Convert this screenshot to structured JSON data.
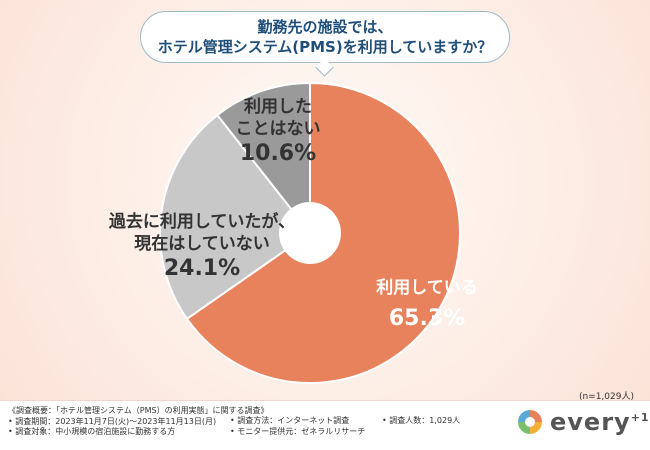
{
  "question": {
    "line1": "勤務先の施設では、",
    "line2": "ホテル管理システム(PMS)を利用していますか？"
  },
  "chart_data": {
    "type": "pie",
    "title": "勤務先の施設では、ホテル管理システム(PMS)を利用していますか？",
    "slices": [
      {
        "label": "利用している",
        "value": 65.3,
        "display": "65.3%",
        "color": "#e8825c"
      },
      {
        "label": "過去に利用していたが、現在はしていない",
        "value": 24.1,
        "display": "24.1%",
        "color": "#c8c8c8"
      },
      {
        "label": "利用したことはない",
        "value": 10.6,
        "display": "10.6%",
        "color": "#9a9a9a"
      }
    ],
    "sample_note": "(n=1,029人)"
  },
  "labels": {
    "used": {
      "line1": "利用している",
      "pct": "65.3%"
    },
    "past": {
      "line1": "過去に利用していたが、",
      "line2": "現在はしていない",
      "pct": "24.1%"
    },
    "never": {
      "line1": "利用した",
      "line2": "ことはない",
      "pct": "10.6%"
    }
  },
  "footer": {
    "overview": "《調査概要：「ホテル管理システム（PMS）の利用実態」に関する調査》",
    "period": "• 調査期間：2023年11月7日(火)～2023年11月13日(月)",
    "target": "• 調査対象：中小規模の宿泊施設に勤務する方",
    "method": "• 調査方法：インターネット調査",
    "provider": "• モニター提供元：ゼネラルリサーチ",
    "count": "• 調査人数：1,029人"
  },
  "logo": {
    "text": "every",
    "sup": "+1"
  }
}
